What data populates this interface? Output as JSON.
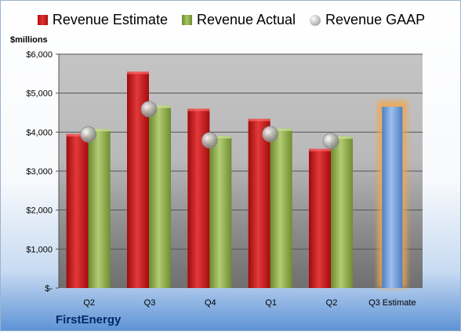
{
  "legend": {
    "estimate": "Revenue Estimate",
    "actual": "Revenue Actual",
    "gaap": "Revenue GAAP"
  },
  "units_label": "$millions",
  "company": "FirstEnergy",
  "chart_data": {
    "type": "bar",
    "categories": [
      "Q2",
      "Q3",
      "Q4",
      "Q1",
      "Q2",
      "Q3 Estimate"
    ],
    "y_ticks": [
      "$-",
      "$1,000",
      "$2,000",
      "$3,000",
      "$4,000",
      "$5,000",
      "$6,000"
    ],
    "ylim": [
      0,
      6000
    ],
    "grid": true,
    "legend_position": "top",
    "series": [
      {
        "name": "Revenue Estimate",
        "color": "#c8171a",
        "values": [
          3950,
          5550,
          4600,
          4340,
          3570,
          null
        ]
      },
      {
        "name": "Revenue Actual",
        "color": "#8fae4a",
        "values": [
          4080,
          4680,
          3900,
          4090,
          3890,
          null
        ]
      },
      {
        "name": "Revenue GAAP",
        "color": "#b0b0b0",
        "values": [
          3940,
          4590,
          3790,
          3950,
          3770,
          null
        ]
      },
      {
        "name": "Q3 Estimate",
        "color": "#6fa0dc",
        "values": [
          null,
          null,
          null,
          null,
          null,
          4650
        ]
      }
    ]
  }
}
